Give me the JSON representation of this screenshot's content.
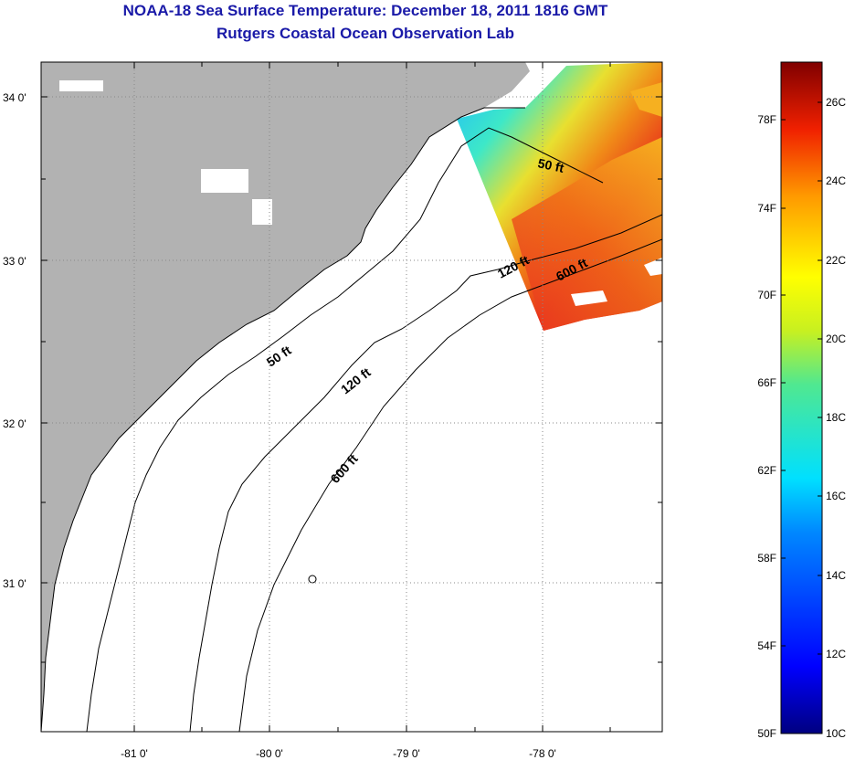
{
  "header": {
    "title": "NOAA-18 Sea Surface Temperature:  December 18, 2011 1816 GMT",
    "subtitle": "Rutgers Coastal Ocean Observation Lab"
  },
  "map": {
    "lon_labels": [
      "-81 0'",
      "-80 0'",
      "-79 0'",
      "-78 0'"
    ],
    "lat_labels": [
      "34 0'",
      "33 0'",
      "32 0'",
      "31 0'"
    ],
    "contour_labels": [
      "50 ft",
      "120 ft",
      "600 ft",
      "50 ft",
      "120 ft",
      "600 ft"
    ]
  },
  "colorbar": {
    "f_labels": [
      "78F",
      "74F",
      "70F",
      "66F",
      "62F",
      "58F",
      "54F",
      "50F"
    ],
    "c_labels": [
      "26C",
      "24C",
      "22C",
      "20C",
      "18C",
      "16C",
      "14C",
      "12C",
      "10C"
    ]
  },
  "colors": {
    "land": "#b2b2b2",
    "title": "#1a1aa8"
  }
}
